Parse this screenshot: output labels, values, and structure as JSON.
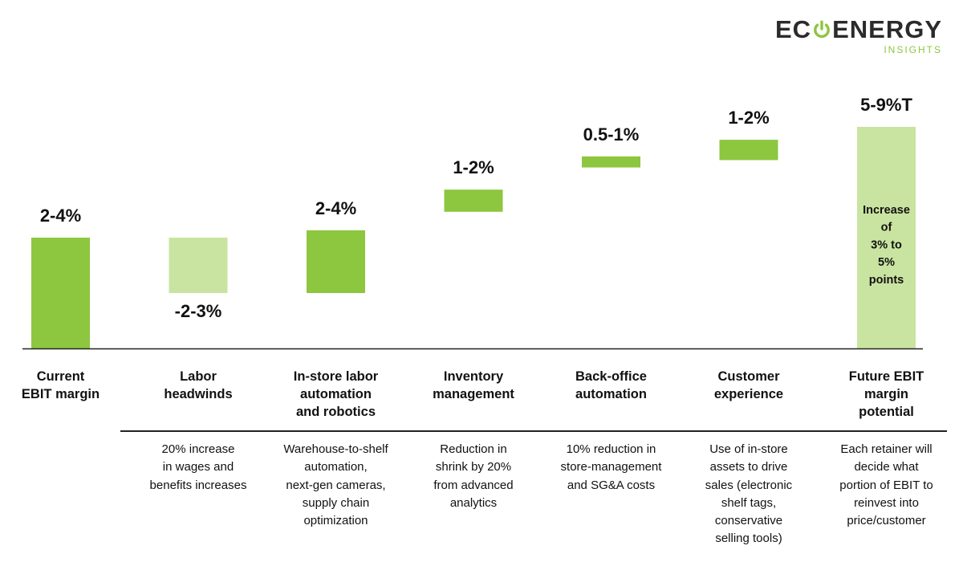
{
  "logo": {
    "left": "EC",
    "right": "ENERGY",
    "sub": "INSIGHTS"
  },
  "colors": {
    "dark_green": "#8dc63f",
    "light_green": "#c9e4a0",
    "axis": "#222222",
    "text": "#111111"
  },
  "chart_data": {
    "type": "bar",
    "subtype": "waterfall",
    "categories": [
      "Current\nEBIT margin",
      "Labor\nheadwinds",
      "In-store labor\nautomation\nand robotics",
      "Inventory\nmanagement",
      "Back-office\nautomation",
      "Customer\nexperience",
      "Future EBIT\nmargin\npotential"
    ],
    "value_labels": [
      "2-4%",
      "-2-3%",
      "2-4%",
      "1-2%",
      "0.5-1%",
      "1-2%",
      "5-9%T"
    ],
    "ranges": [
      [
        0,
        3
      ],
      [
        -2.5,
        0
      ],
      [
        0,
        3
      ],
      [
        0,
        1.5
      ],
      [
        0,
        0.75
      ],
      [
        0,
        1.5
      ],
      [
        0,
        7
      ]
    ],
    "steps": [
      {
        "bottom": 0,
        "top": 3
      },
      {
        "bottom": 1.5,
        "top": 3
      },
      {
        "bottom": 1.5,
        "top": 3.2
      },
      {
        "bottom": 3.7,
        "top": 4.3
      },
      {
        "bottom": 4.9,
        "top": 5.2
      },
      {
        "bottom": 5.1,
        "top": 5.65
      },
      {
        "bottom": 0,
        "top": 6.0
      }
    ],
    "bar_styles": [
      "dark",
      "light",
      "dark",
      "dark",
      "dark",
      "dark",
      "light"
    ],
    "inner_label": "Increase\nof\n3% to\n5%\npoints",
    "descriptions": [
      "",
      "20% increase\nin wages and\nbenefits increases",
      "Warehouse-to-shelf\nautomation,\nnext-gen cameras,\nsupply chain\noptimization",
      "Reduction in\nshrink by 20%\nfrom advanced\nanalytics",
      "10% reduction in\nstore-management\nand SG&A costs",
      "Use of in-store\nassets to drive\nsales (electronic\nshelf tags,\nconservative\nselling tools)",
      "Each retainer will\ndecide what\nportion of EBIT to\nreinvest into\nprice/customer"
    ]
  }
}
